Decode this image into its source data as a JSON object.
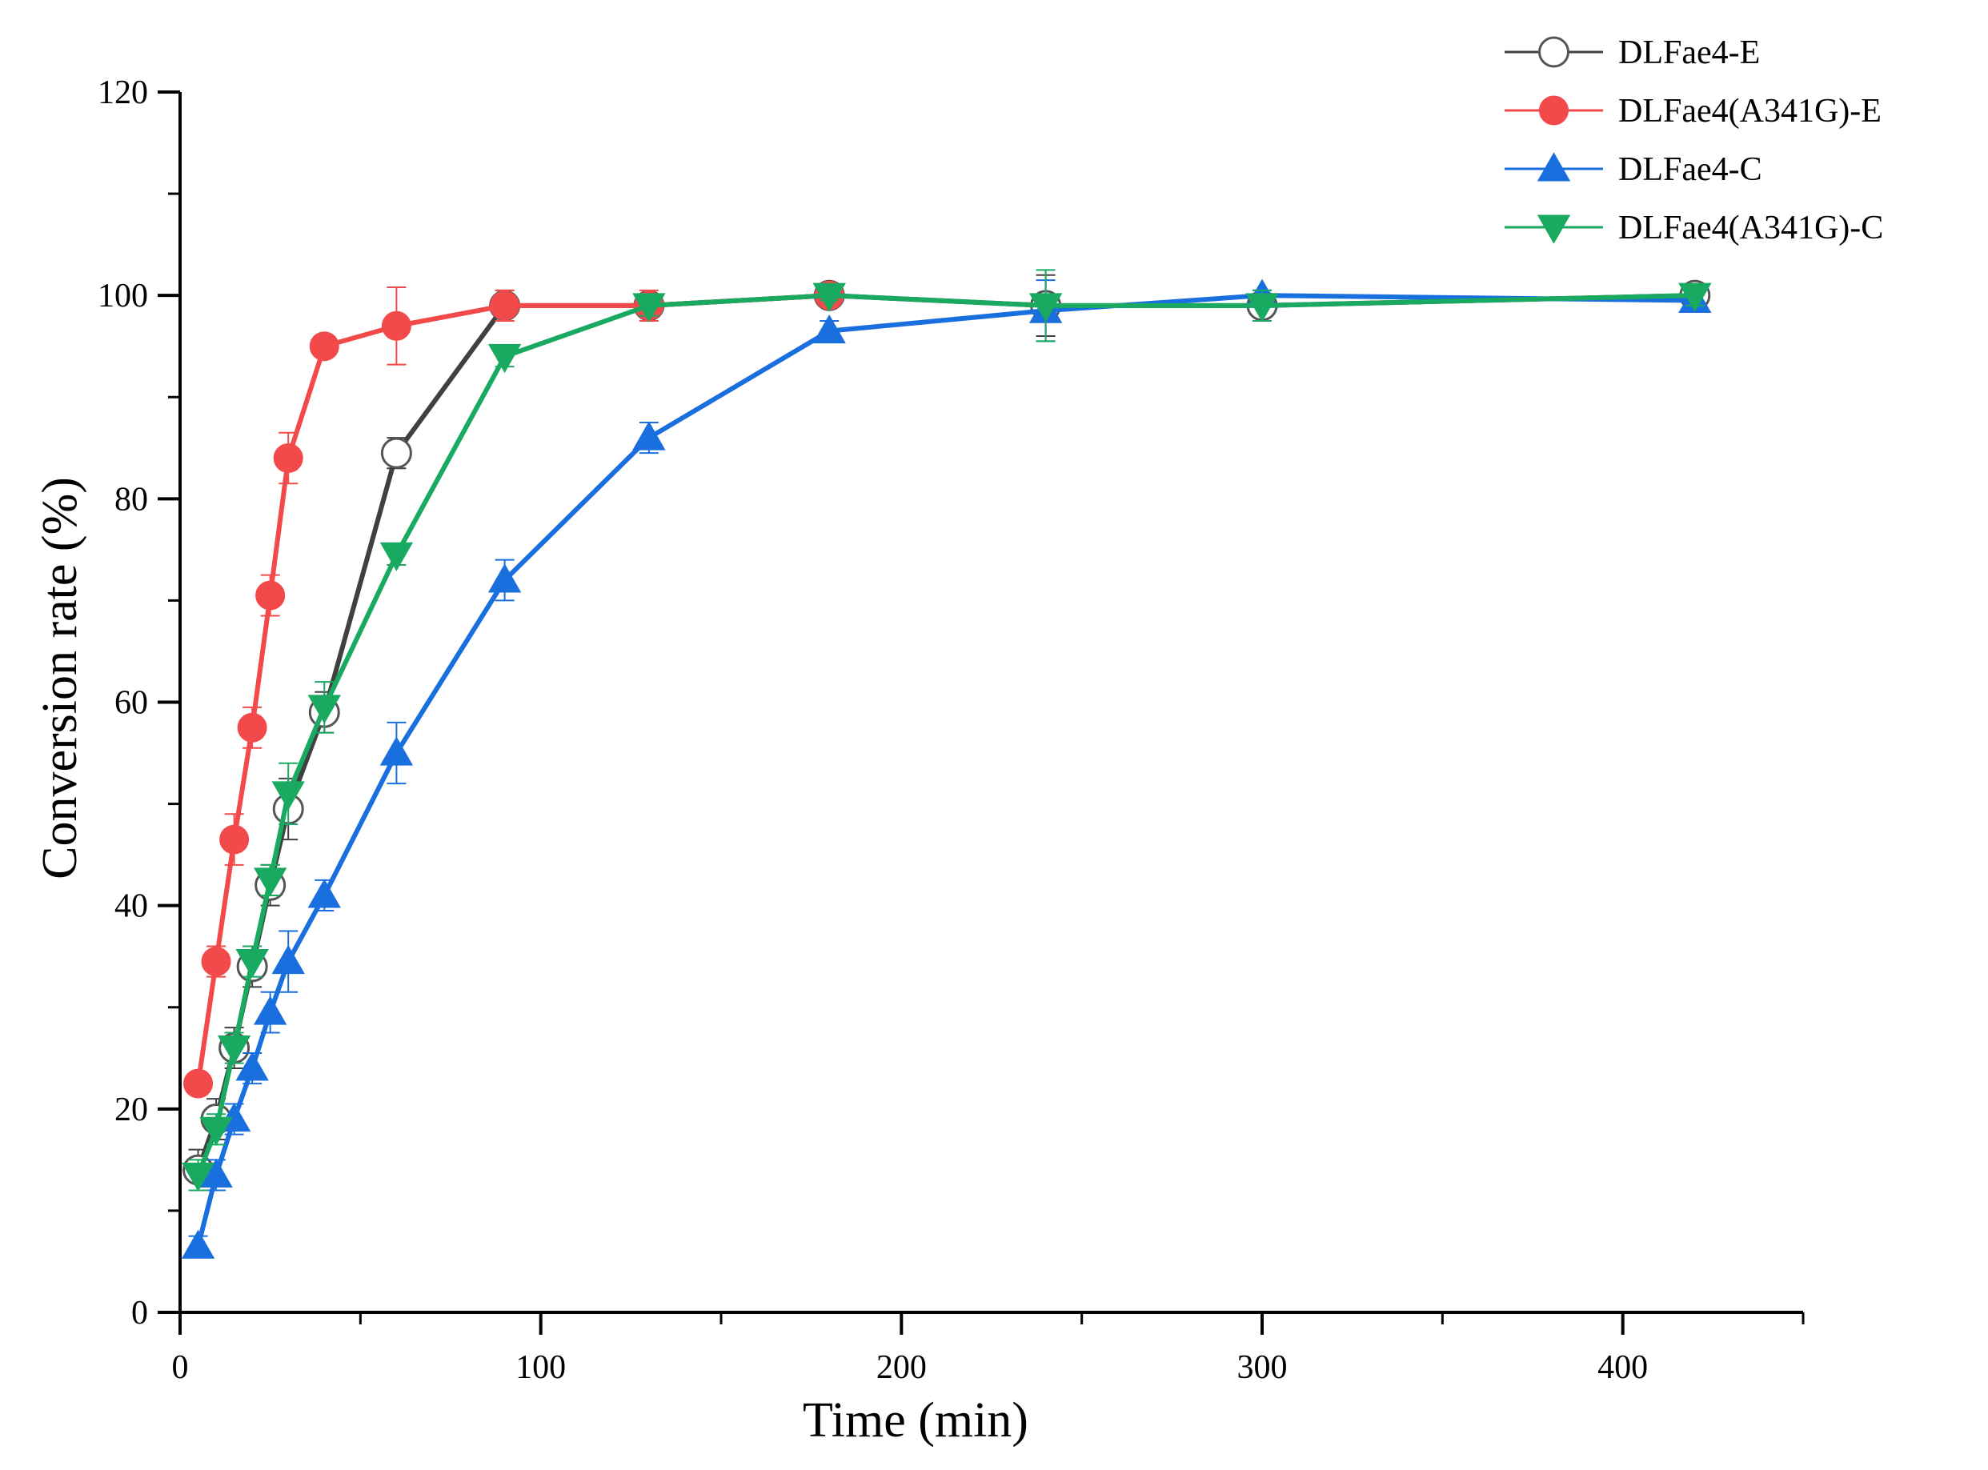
{
  "chart_data": {
    "type": "line",
    "title": "",
    "xlabel": "Time (min)",
    "ylabel": "Conversion rate (%)",
    "xlim": [
      0,
      450
    ],
    "ylim": [
      0,
      120
    ],
    "xticks": [
      0,
      100,
      200,
      300,
      400
    ],
    "yticks": [
      0,
      20,
      40,
      60,
      80,
      100,
      120
    ],
    "xtick_labels": [
      "0",
      "100",
      "200",
      "300",
      "400"
    ],
    "ytick_labels": [
      "0",
      "20",
      "40",
      "60",
      "80",
      "100",
      "120"
    ],
    "grid": false,
    "legend_position": "top-right",
    "series": [
      {
        "name": "DLFae4-E",
        "color": "#404040",
        "marker": "open-circle",
        "x": [
          5,
          10,
          15,
          20,
          25,
          30,
          40,
          60,
          90,
          130,
          180,
          240,
          300,
          420
        ],
        "y": [
          14,
          19,
          26,
          34,
          42,
          49.5,
          59,
          84.5,
          99,
          99,
          100,
          99,
          99,
          100
        ],
        "err": [
          2,
          2,
          2,
          2,
          2,
          3,
          2,
          1.5,
          1.5,
          1,
          0.5,
          3,
          1.5,
          1
        ]
      },
      {
        "name": "DLFae4(A341G)-E",
        "color": "#f24a4a",
        "marker": "filled-circle",
        "x": [
          5,
          10,
          15,
          20,
          25,
          30,
          40,
          60,
          90,
          130,
          180
        ],
        "y": [
          22.5,
          34.5,
          46.5,
          57.5,
          70.5,
          84,
          95,
          97,
          99,
          99,
          100
        ],
        "err": [
          1,
          1.5,
          2.5,
          2,
          2,
          2.5,
          1,
          3.8,
          1.5,
          1.5,
          0.5
        ]
      },
      {
        "name": "DLFae4-C",
        "color": "#1a6fdf",
        "marker": "triangle-up",
        "x": [
          5,
          10,
          15,
          20,
          25,
          30,
          40,
          60,
          90,
          130,
          180,
          240,
          300,
          420
        ],
        "y": [
          6.5,
          13.5,
          19,
          24,
          29.5,
          34.5,
          41,
          55,
          72,
          86,
          96.5,
          98.5,
          100,
          99.5
        ],
        "err": [
          1,
          1.5,
          1.5,
          1.5,
          2,
          3,
          1.5,
          3,
          2,
          1.5,
          1,
          3,
          0.5,
          1
        ]
      },
      {
        "name": "DLFae4(A341G)-C",
        "color": "#19a960",
        "marker": "triangle-down",
        "x": [
          5,
          10,
          15,
          20,
          25,
          30,
          40,
          60,
          90,
          130,
          180,
          240,
          300,
          420
        ],
        "y": [
          13.5,
          18,
          26,
          34.5,
          42.5,
          51,
          59.5,
          74.5,
          94,
          99,
          100,
          99,
          99,
          100
        ],
        "err": [
          1.5,
          1.5,
          1.5,
          1.5,
          1.5,
          3,
          2.5,
          1,
          1,
          1,
          0.5,
          3.5,
          1.5,
          1
        ]
      }
    ]
  }
}
